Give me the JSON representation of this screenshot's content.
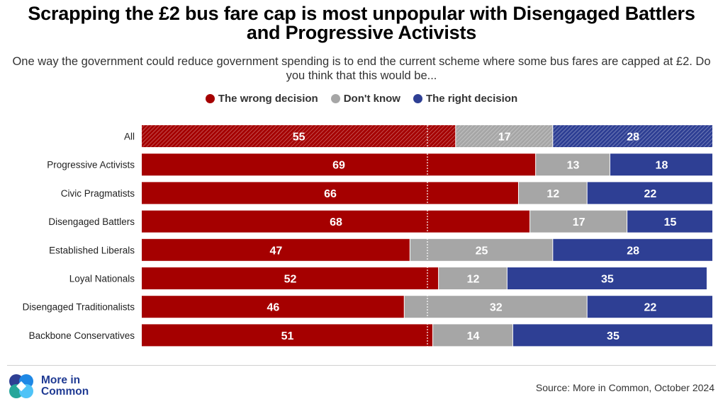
{
  "title": "Scrapping the £2 bus fare cap is most unpopular with Disengaged Battlers and Progressive Activists",
  "subtitle": "One way the government could reduce government spending is to end the current scheme where some bus fares are capped at £2. Do you think that this would be...",
  "source": "Source: More in Common, October 2024",
  "logo": {
    "line1": "More in",
    "line2": "Common",
    "icon": "more-in-common-logo-icon"
  },
  "colors": {
    "wrong": "#a50000",
    "dontknow": "#a6a6a6",
    "right": "#2e3f94"
  },
  "chart_data": {
    "type": "bar",
    "orientation": "horizontal",
    "stacked": true,
    "xlim": [
      0,
      100
    ],
    "reference_line": 50,
    "legend_position": "top",
    "categories": [
      "All",
      "Progressive Activists",
      "Civic Pragmatists",
      "Disengaged Battlers",
      "Established Liberals",
      "Loyal Nationals",
      "Disengaged Traditionalists",
      "Backbone Conservatives"
    ],
    "series": [
      {
        "name": "The wrong decision",
        "color": "#a50000",
        "values": [
          55,
          69,
          66,
          68,
          47,
          52,
          46,
          51
        ]
      },
      {
        "name": "Don't know",
        "color": "#a6a6a6",
        "values": [
          17,
          13,
          12,
          17,
          25,
          12,
          32,
          14
        ]
      },
      {
        "name": "The right decision",
        "color": "#2e3f94",
        "values": [
          28,
          18,
          22,
          15,
          28,
          35,
          22,
          35
        ]
      }
    ]
  }
}
